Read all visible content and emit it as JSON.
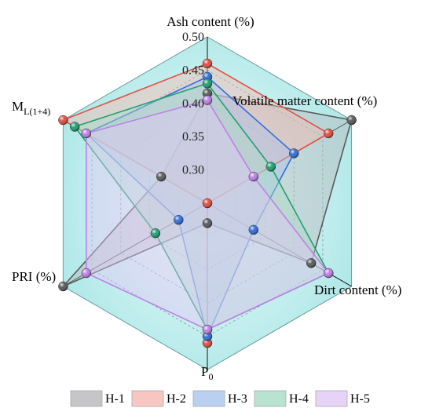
{
  "chart_data": {
    "type": "radar",
    "title": "",
    "axes": [
      {
        "key": "ash",
        "label": "Ash content (%)",
        "label_sub": ""
      },
      {
        "key": "volatile",
        "label": "Volatile matter content (%)",
        "label_sub": ""
      },
      {
        "key": "dirt",
        "label": "Dirt content (%)",
        "label_sub": ""
      },
      {
        "key": "p0",
        "label": "P",
        "label_sub": "0"
      },
      {
        "key": "pri",
        "label": "PRI (%)",
        "label_sub": ""
      },
      {
        "key": "ml",
        "label": "M",
        "label_sub": "L(1+4)"
      }
    ],
    "scale_ticks": [
      "0.30",
      "0.35",
      "0.40",
      "0.45",
      "0.50"
    ],
    "series": [
      {
        "name": "H-1",
        "color": "#5a5a5a",
        "fill": "#b8b8bc",
        "values": [
          0.415,
          0.5,
          0.43,
          0.28,
          0.5,
          0.33
        ]
      },
      {
        "name": "H-2",
        "color": "#e05040",
        "fill": "#f6b8b0",
        "values": [
          0.46,
          0.46,
          0.25,
          0.46,
          0.25,
          0.5
        ]
      },
      {
        "name": "H-3",
        "color": "#3070d8",
        "fill": "#a8c4ee",
        "values": [
          0.44,
          0.4,
          0.33,
          0.45,
          0.3,
          0.46
        ]
      },
      {
        "name": "H-4",
        "color": "#20a070",
        "fill": "#a8dcc6",
        "values": [
          0.43,
          0.36,
          0.46,
          0.44,
          0.34,
          0.48
        ]
      },
      {
        "name": "H-5",
        "color": "#c080e8",
        "fill": "#e2c8f6",
        "values": [
          0.405,
          0.33,
          0.46,
          0.44,
          0.46,
          0.46
        ]
      }
    ],
    "legend_position": "bottom",
    "grid": true,
    "background_color": "#bfeeee"
  }
}
